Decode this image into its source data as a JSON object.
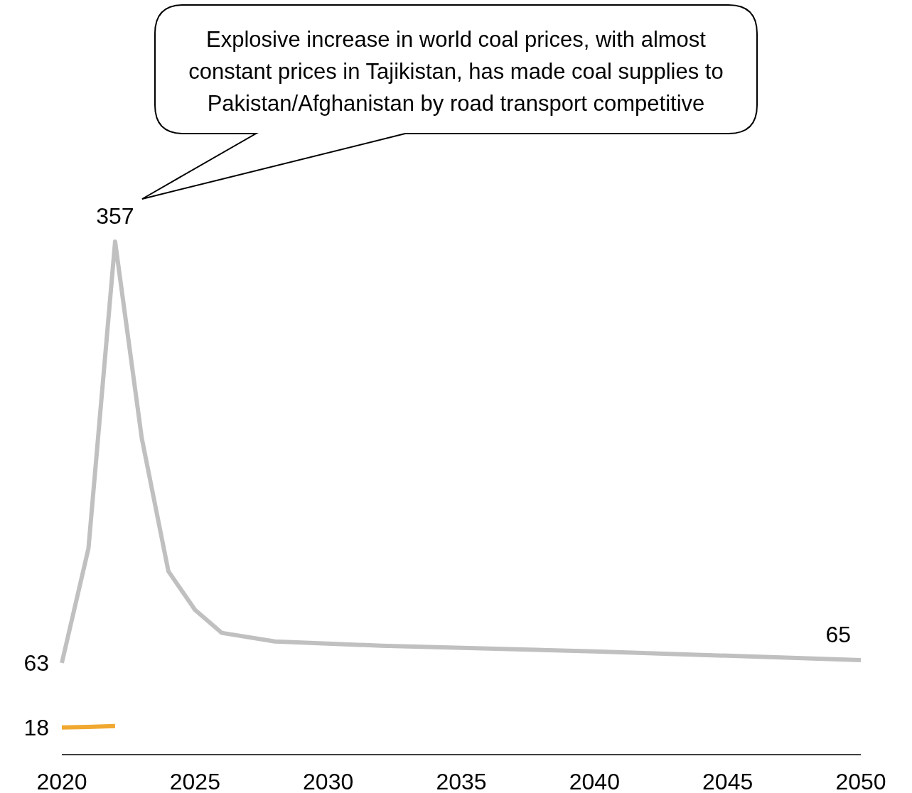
{
  "chart_data": {
    "type": "line",
    "annotations": [
      "Explosive increase in world coal prices, with almost constant prices in Tajikistan, has made coal supplies to Pakistan/Afghanistan by road transport competitive"
    ],
    "series": [
      {
        "color": "#c0c0c0",
        "x": [
          2020,
          2021,
          2022,
          2023,
          2024,
          2025,
          2026,
          2028,
          2032,
          2040,
          2045,
          2050
        ],
        "values": [
          63,
          143,
          357,
          220,
          127,
          100,
          84,
          78,
          75,
          71,
          68,
          65
        ],
        "value_labels": [
          "63",
          null,
          "357",
          null,
          null,
          null,
          null,
          null,
          null,
          null,
          null,
          "65"
        ]
      },
      {
        "color": "#f0a830",
        "x": [
          2020,
          2021,
          2022
        ],
        "values": [
          18,
          18.3,
          19
        ],
        "value_labels": [
          "18",
          null,
          null
        ]
      }
    ],
    "xlim": [
      2020,
      2050
    ],
    "xticks": [
      2020,
      2025,
      2030,
      2035,
      2040,
      2045,
      2050
    ],
    "tick_labels": "x",
    "marker": "none",
    "line_style": "solid"
  }
}
